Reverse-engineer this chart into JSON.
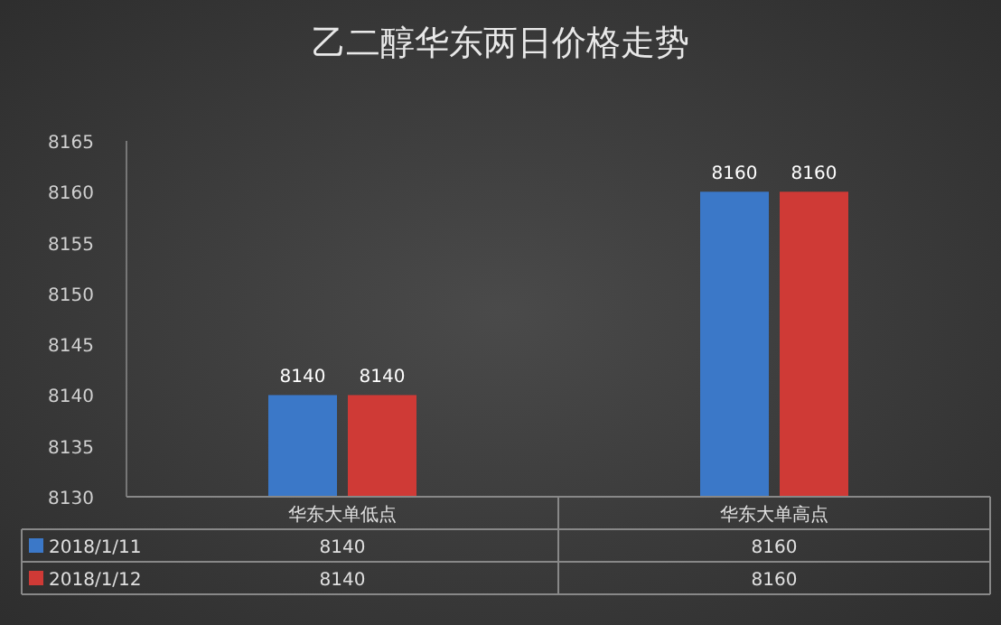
{
  "chart_data": {
    "type": "bar",
    "title": "乙二醇华东两日价格走势",
    "categories": [
      "华东大单低点",
      "华东大单高点"
    ],
    "series": [
      {
        "name": "2018/1/11",
        "color": "#3b78c8",
        "values": [
          8140,
          8160
        ],
        "value_labels": [
          "8140",
          "8160"
        ]
      },
      {
        "name": "2018/1/12",
        "color": "#cf3a36",
        "values": [
          8140,
          8160
        ],
        "value_labels": [
          "8140",
          "8160"
        ]
      }
    ],
    "ylim": [
      8130,
      8165
    ],
    "yticks": [
      8130,
      8135,
      8140,
      8145,
      8150,
      8155,
      8160,
      8165
    ],
    "annotations": [
      "8140",
      "8160",
      "8140",
      "8160"
    ],
    "legend": "bottom"
  }
}
